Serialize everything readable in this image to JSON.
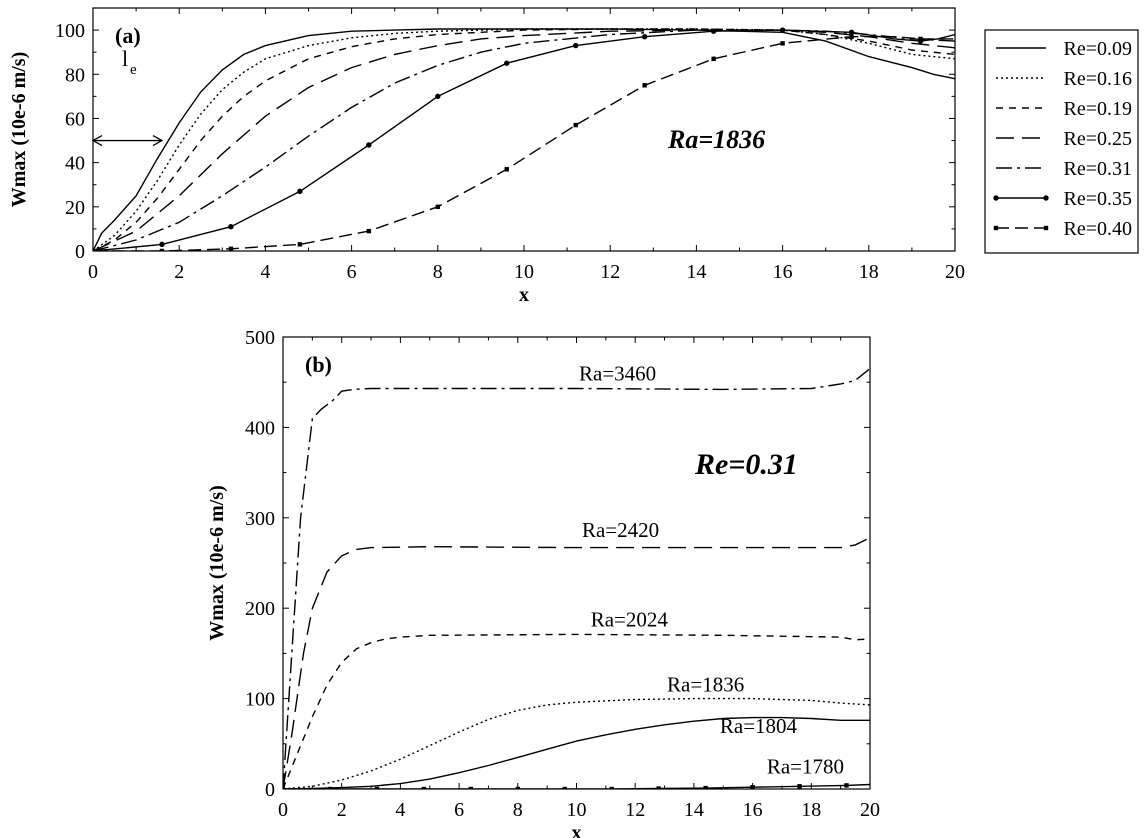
{
  "chart_data": [
    {
      "type": "line",
      "panel_label": "(a)",
      "annotation": "Ra=1836",
      "le_label": "l",
      "le_subscript": "e",
      "xlabel": "x",
      "ylabel": "Wmax (10e-6 m/s)",
      "xlim": [
        0,
        20
      ],
      "ylim": [
        0,
        110
      ],
      "xticks": [
        0,
        2,
        4,
        6,
        8,
        10,
        12,
        14,
        16,
        18,
        20
      ],
      "yticks": [
        0,
        20,
        40,
        60,
        80,
        100
      ],
      "legend_placement": "right, outside",
      "series": [
        {
          "name": "Re=0.09",
          "style": "solid",
          "x": [
            0,
            0.2,
            0.5,
            1,
            1.5,
            2,
            2.5,
            3,
            3.5,
            4,
            5,
            6,
            7,
            8,
            10,
            12,
            14,
            16,
            17,
            18,
            19,
            19.5,
            20
          ],
          "y": [
            0,
            8,
            14,
            25,
            42,
            58,
            72,
            82,
            89,
            93,
            97.5,
            99.5,
            100,
            100.5,
            100.5,
            100.5,
            100,
            99,
            95,
            88,
            83,
            80,
            78
          ]
        },
        {
          "name": "Re=0.16",
          "style": "dotted",
          "x": [
            0,
            0.5,
            1,
            1.5,
            2,
            2.5,
            3,
            3.5,
            4,
            5,
            6,
            7,
            8,
            10,
            12,
            14,
            16,
            17,
            18,
            19,
            20
          ],
          "y": [
            0,
            7,
            18,
            32,
            48,
            62,
            73,
            81,
            87,
            93,
            96.5,
            98.5,
            99.5,
            100.5,
            100.5,
            100.5,
            100,
            98,
            94,
            89,
            87
          ]
        },
        {
          "name": "Re=0.19",
          "style": "dash-short",
          "x": [
            0,
            0.5,
            1,
            1.5,
            2,
            2.5,
            3,
            3.5,
            4,
            5,
            6,
            7,
            8,
            10,
            12,
            14,
            16,
            17,
            18,
            19,
            20
          ],
          "y": [
            0,
            5,
            13,
            24,
            37,
            50,
            61,
            70,
            77,
            87,
            92.5,
            96,
            98,
            100,
            100.5,
            100.5,
            100,
            98,
            95,
            91,
            89
          ]
        },
        {
          "name": "Re=0.25",
          "style": "dash-long",
          "x": [
            0,
            1,
            2,
            3,
            4,
            5,
            6,
            7,
            8,
            9,
            10,
            12,
            14,
            16,
            17,
            18,
            19,
            20
          ],
          "y": [
            0,
            9,
            25,
            44,
            61,
            74,
            83,
            89,
            93,
            96,
            97.5,
            99.5,
            100,
            100,
            99,
            97,
            94,
            92
          ]
        },
        {
          "name": "Re=0.31",
          "style": "dashdot",
          "x": [
            0,
            1,
            2,
            3,
            4,
            5,
            6,
            7,
            8,
            9,
            10,
            12,
            14,
            16,
            17,
            18,
            19,
            20
          ],
          "y": [
            0,
            5,
            13,
            25,
            38,
            52,
            65,
            76,
            84,
            90,
            94,
            98,
            100,
            100,
            99.5,
            98,
            96,
            95
          ]
        },
        {
          "name": "Re=0.35",
          "style": "solid-dot",
          "x": [
            0,
            1.6,
            3.2,
            4.8,
            6.4,
            8,
            9.6,
            11.2,
            12.8,
            14.4,
            16,
            17.6,
            18.6,
            19.2,
            19.6,
            20
          ],
          "y": [
            0,
            3,
            11,
            27,
            48,
            70,
            85,
            93,
            97,
            99.5,
            100,
            99,
            96,
            95,
            96,
            98
          ]
        },
        {
          "name": "Re=0.40",
          "style": "dash-square",
          "x": [
            0,
            1.6,
            3.2,
            4.8,
            6.4,
            8,
            9.6,
            11.2,
            12.8,
            14.4,
            16,
            17.6,
            18.6,
            19.2,
            20
          ],
          "y": [
            0,
            0,
            1,
            3,
            9,
            20,
            37,
            57,
            75,
            87,
            94,
            97,
            97,
            96,
            96
          ]
        }
      ]
    },
    {
      "type": "line",
      "panel_label": "(b)",
      "annotation": "Re=0.31",
      "xlabel": "x",
      "ylabel": "Wmax (10e-6 m/s)",
      "xlim": [
        0,
        20
      ],
      "ylim": [
        0,
        500
      ],
      "xticks": [
        0,
        2,
        4,
        6,
        8,
        10,
        12,
        14,
        16,
        18,
        20
      ],
      "yticks": [
        0,
        100,
        200,
        300,
        400,
        500
      ],
      "series": [
        {
          "name": "Ra=3460",
          "style": "dashdot",
          "label_at": [
            11.4,
            452
          ],
          "x": [
            0,
            0.3,
            0.6,
            1,
            1.3,
            1.7,
            2,
            2.4,
            3,
            5,
            10,
            15,
            18,
            19,
            19.5,
            20
          ],
          "y": [
            0,
            150,
            300,
            410,
            420,
            430,
            440,
            442,
            443,
            443,
            443,
            442,
            443,
            448,
            452,
            465
          ]
        },
        {
          "name": "Ra=2420",
          "style": "dash-long",
          "label_at": [
            11.5,
            279
          ],
          "x": [
            0,
            0.3,
            0.7,
            1,
            1.5,
            2,
            2.5,
            3,
            5,
            10,
            15,
            19,
            19.5,
            20
          ],
          "y": [
            0,
            60,
            150,
            200,
            240,
            258,
            265,
            267,
            268,
            267,
            267,
            267,
            270,
            278
          ]
        },
        {
          "name": "Ra=2024",
          "style": "dash-short",
          "label_at": [
            11.8,
            180
          ],
          "x": [
            0,
            0.5,
            1,
            1.5,
            2,
            2.5,
            3,
            3.5,
            4,
            5,
            10,
            15,
            19,
            19.5,
            20
          ],
          "y": [
            0,
            40,
            80,
            115,
            140,
            155,
            162,
            166,
            168,
            170,
            171,
            170,
            168,
            165,
            166
          ]
        },
        {
          "name": "Ra=1836",
          "style": "dotted",
          "label_at": [
            14.4,
            108
          ],
          "x": [
            0,
            1,
            2,
            3,
            4,
            5,
            6,
            7,
            8,
            9,
            10,
            12,
            14,
            16,
            17,
            18,
            19,
            20
          ],
          "y": [
            0,
            3,
            10,
            20,
            33,
            48,
            63,
            77,
            87,
            93,
            96,
            99,
            100,
            100,
            99,
            98,
            95,
            93
          ]
        },
        {
          "name": "Ra=1804",
          "style": "solid",
          "label_at": [
            16.2,
            62
          ],
          "x": [
            0,
            1,
            2,
            3,
            4,
            5,
            6,
            7,
            8,
            9,
            10,
            11,
            12,
            13,
            14,
            15,
            16,
            17,
            18,
            19,
            20
          ],
          "y": [
            0,
            0.5,
            1.5,
            3,
            6,
            11,
            18,
            26,
            35,
            44,
            53,
            60,
            66,
            71,
            75,
            78,
            79,
            79,
            78,
            76,
            76
          ]
        },
        {
          "name": "Ra=1780",
          "style": "solid-square",
          "label_at": [
            17.8,
            17
          ],
          "x": [
            0,
            1.6,
            3.2,
            4.8,
            6.4,
            8,
            9.6,
            11.2,
            12.8,
            14.4,
            16,
            17.6,
            19.2,
            20
          ],
          "y": [
            0,
            0,
            0,
            0,
            0,
            0,
            0,
            0,
            0.5,
            1,
            2,
            3,
            4,
            5
          ]
        }
      ]
    }
  ]
}
